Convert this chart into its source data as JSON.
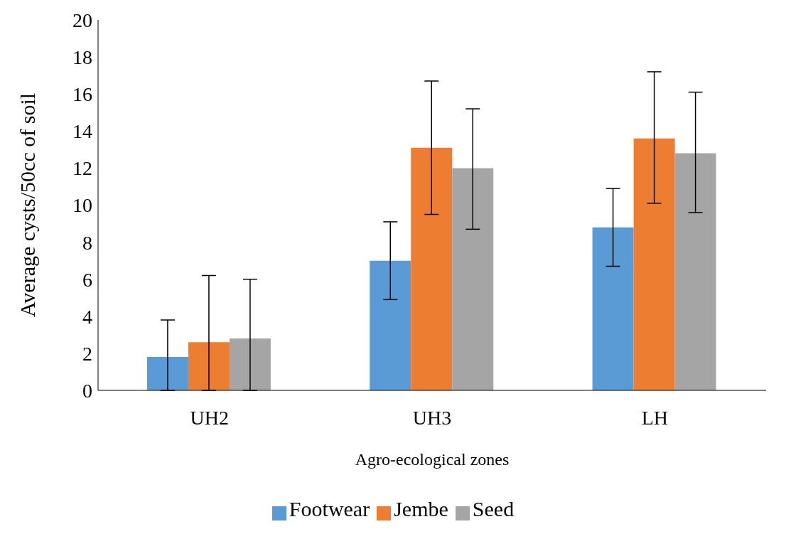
{
  "chart_data": {
    "type": "bar",
    "xlabel": "Agro-ecological zones",
    "ylabel": "Average cysts/50cc of soil",
    "categories": [
      "UH2",
      "UH3",
      "LH"
    ],
    "series": [
      {
        "name": "Footwear",
        "color": "#5b9bd5",
        "values": [
          1.8,
          7.0,
          8.8
        ],
        "errors": [
          [
            0,
            3.8
          ],
          [
            4.9,
            9.1
          ],
          [
            6.7,
            10.9
          ]
        ]
      },
      {
        "name": "Jembe",
        "color": "#ed7d31",
        "values": [
          2.6,
          13.1,
          13.6
        ],
        "errors": [
          [
            0,
            6.2
          ],
          [
            9.5,
            16.7
          ],
          [
            10.1,
            17.2
          ]
        ]
      },
      {
        "name": "Seed",
        "color": "#a5a5a5",
        "values": [
          2.8,
          12.0,
          12.8
        ],
        "errors": [
          [
            0,
            6.0
          ],
          [
            8.7,
            15.2
          ],
          [
            9.6,
            16.1
          ]
        ]
      }
    ],
    "ylim": [
      0,
      20
    ],
    "yticks": [
      0,
      2,
      4,
      6,
      8,
      10,
      12,
      14,
      16,
      18,
      20
    ],
    "grid": false,
    "legend": "bottom"
  }
}
